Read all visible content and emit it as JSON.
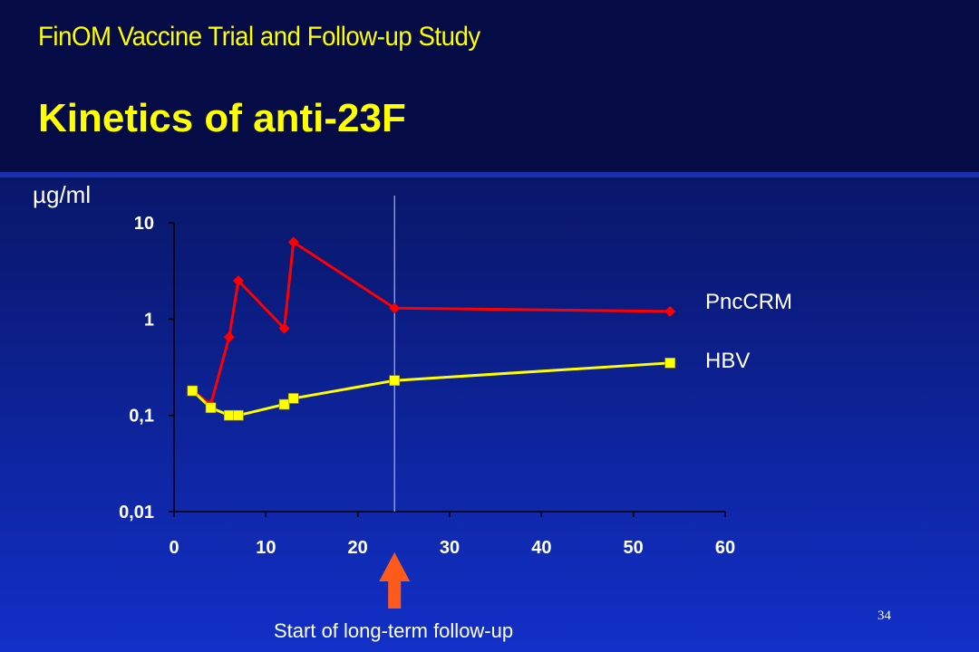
{
  "slide": {
    "subtitle": "FinOM Vaccine Trial and Follow-up Study",
    "title": "Kinetics of anti-23F",
    "caption": "Start of long-term follow-up",
    "slide_number": "34"
  },
  "colors": {
    "pnccrm": "#ff0000",
    "hbv": "#ffff00",
    "arrow": "#ff5a1a",
    "axis": "#000000",
    "tick_text": "#ffffff"
  },
  "chart_data": {
    "type": "line",
    "title": "Kinetics of anti-23F",
    "ylabel": "µg/ml",
    "xlabel": "",
    "yscale": "log",
    "xlim": [
      0,
      60
    ],
    "ylim": [
      0.01,
      10
    ],
    "x_ticks": [
      0,
      10,
      20,
      30,
      40,
      50,
      60
    ],
    "x_tick_labels": [
      "0",
      "10",
      "20",
      "30",
      "40",
      "50",
      "60"
    ],
    "y_ticks": [
      0.01,
      0.1,
      1,
      10
    ],
    "y_tick_labels": [
      "0,01",
      "0,1",
      "1",
      "10"
    ],
    "reference_line_x": 24,
    "grid": false,
    "legend": "right",
    "series": [
      {
        "name": "PncCRM",
        "marker": "diamond",
        "x": [
          2,
          4,
          6,
          7,
          12,
          13,
          24,
          54
        ],
        "y": [
          0.18,
          0.13,
          0.65,
          2.5,
          0.8,
          6.3,
          1.3,
          1.2
        ]
      },
      {
        "name": "HBV",
        "marker": "square",
        "x": [
          2,
          4,
          6,
          7,
          12,
          13,
          24,
          54
        ],
        "y": [
          0.18,
          0.12,
          0.1,
          0.1,
          0.13,
          0.15,
          0.23,
          0.35
        ]
      }
    ]
  }
}
